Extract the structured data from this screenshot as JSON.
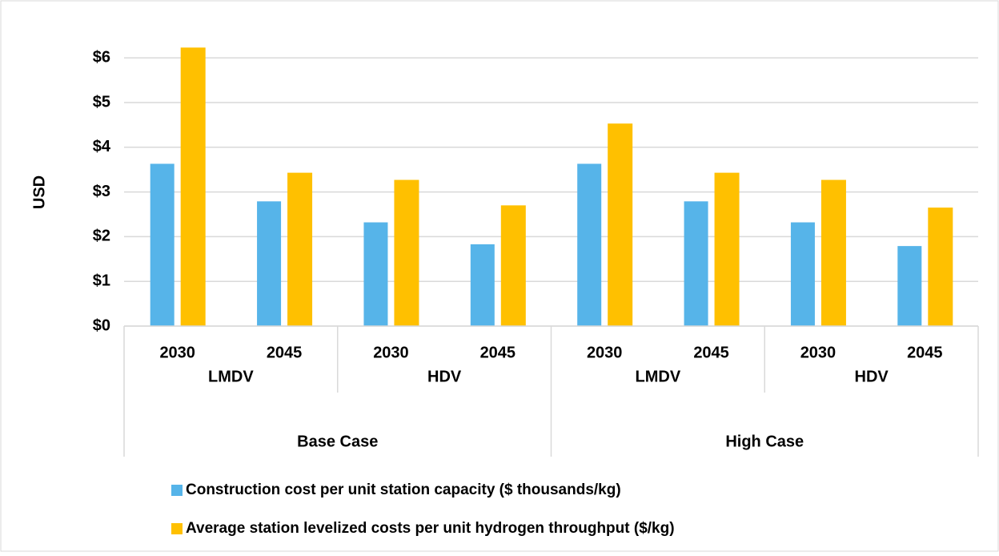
{
  "chart_data": {
    "type": "bar",
    "y_label": "USD",
    "categories": [
      "2030",
      "2045",
      "2030",
      "2045",
      "2030",
      "2045",
      "2030",
      "2045"
    ],
    "category_groups": [
      "LMDV",
      "HDV",
      "LMDV",
      "HDV"
    ],
    "category_supergroups": [
      "Base Case",
      "High Case"
    ],
    "series": [
      {
        "name": "Construction cost per unit station capacity ($ thousands/kg)",
        "color": "#56b4e9",
        "values": [
          3.63,
          2.79,
          2.32,
          1.83,
          3.63,
          2.79,
          2.32,
          1.79
        ]
      },
      {
        "name": "Average station levelized costs per unit hydrogen throughput ($/kg)",
        "color": "#ffc000",
        "values": [
          6.23,
          3.43,
          3.27,
          2.7,
          4.53,
          3.43,
          3.27,
          2.65
        ]
      }
    ],
    "ylim": [
      0,
      6.5
    ],
    "yticks": [
      {
        "value": 0,
        "label": "$0"
      },
      {
        "value": 1,
        "label": "$1"
      },
      {
        "value": 2,
        "label": "$2"
      },
      {
        "value": 3,
        "label": "$3"
      },
      {
        "value": 4,
        "label": "$4"
      },
      {
        "value": 5,
        "label": "$5"
      },
      {
        "value": 6,
        "label": "$6"
      }
    ],
    "grid": true
  }
}
